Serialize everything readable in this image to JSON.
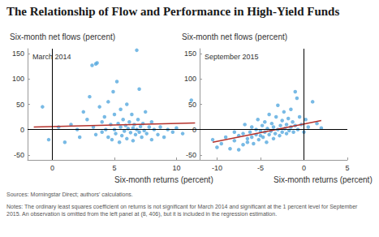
{
  "title": "The Relationship of Flow and Performance in High-Yield Funds",
  "sources": "Sources: Morningstar Direct; authors' calculations.",
  "notes": "Notes: The ordinary least squares coefficient on returns is not significant for March 2014 and significant at the 1 percent level for September 2015. An observation is omitted from the left panel at (8, 406), but it is included in the regression estimation.",
  "chart_data": [
    {
      "type": "scatter",
      "annotation": "March 2014",
      "y_label": "Six-month net flows (percent)",
      "x_label": "Six-month returns (percent)",
      "xlim": [
        -2,
        12
      ],
      "xticks": [
        0,
        5,
        10
      ],
      "ylim": [
        -60,
        160
      ],
      "yticks": [
        -50,
        0,
        50,
        100,
        150
      ],
      "series": [
        {
          "type": "scatter",
          "color": "#56a9de",
          "x": [
            -0.8,
            -0.3,
            0.5,
            1,
            1.5,
            2,
            2.2,
            2.5,
            2.8,
            3,
            3.2,
            3.5,
            3.6,
            3.3,
            3.5,
            3.8,
            4,
            4,
            4.2,
            4.3,
            4.5,
            4.5,
            4.7,
            4.8,
            4.9,
            5,
            5,
            5.1,
            5.2,
            5.3,
            5.4,
            5.5,
            5.5,
            5.6,
            5.7,
            5.8,
            5.9,
            6,
            6,
            6.1,
            6.2,
            6.3,
            6.4,
            6.5,
            6.5,
            6.6,
            6.7,
            6.8,
            6.8,
            6.9,
            7,
            7,
            7.1,
            7.2,
            7.3,
            7.4,
            7.5,
            7.6,
            7.8,
            8,
            8,
            8.2,
            8.5,
            8.7,
            9,
            9.3,
            9.7,
            10,
            10.5,
            11.2
          ],
          "values": [
            45,
            -20,
            5,
            -25,
            10,
            0,
            -15,
            35,
            20,
            65,
            127,
            130,
            132,
            5,
            -10,
            45,
            15,
            -5,
            25,
            0,
            -15,
            55,
            10,
            -20,
            75,
            0,
            30,
            -8,
            95,
            12,
            -25,
            5,
            40,
            -12,
            20,
            -3,
            8,
            -18,
            50,
            2,
            15,
            -6,
            30,
            -22,
            3,
            10,
            -10,
            157,
            0,
            20,
            80,
            -5,
            6,
            -15,
            12,
            -2,
            35,
            -8,
            5,
            -20,
            15,
            0,
            -10,
            5,
            -15,
            0,
            -5,
            3,
            -8,
            58
          ]
        },
        {
          "type": "line",
          "color": "#b5312b",
          "x": [
            -1.5,
            11.5
          ],
          "values": [
            5,
            13
          ]
        }
      ]
    },
    {
      "type": "scatter",
      "annotation": "September 2015",
      "y_label": "Six-month net flows (percent)",
      "x_label": "Six-month returns (percent)",
      "xlim": [
        -12,
        5
      ],
      "xticks": [
        -10,
        -5,
        0,
        5
      ],
      "ylim": [
        -60,
        160
      ],
      "yticks": [
        -50,
        0,
        50,
        100,
        150
      ],
      "series": [
        {
          "type": "scatter",
          "color": "#56a9de",
          "x": [
            -10.5,
            -10,
            -9.5,
            -9,
            -8.5,
            -8,
            -8,
            -7.5,
            -7.5,
            -7,
            -7,
            -6.8,
            -6.5,
            -6.5,
            -6.2,
            -6,
            -6,
            -5.8,
            -5.5,
            -5.5,
            -5.3,
            -5.2,
            -5,
            -5,
            -4.8,
            -4.7,
            -4.5,
            -4.5,
            -4.3,
            -4.2,
            -4,
            -4,
            -3.8,
            -3.7,
            -3.5,
            -3.5,
            -3.3,
            -3.2,
            -3,
            -3,
            -2.8,
            -2.7,
            -2.5,
            -2.5,
            -2.3,
            -2.2,
            -2,
            -2,
            -1.8,
            -1.7,
            -1.5,
            -1.5,
            -1.3,
            -1.2,
            -1,
            -1,
            -0.8,
            -0.7,
            -0.5,
            -0.3,
            0,
            0.2,
            0.5,
            1,
            1.5,
            2
          ],
          "values": [
            -20,
            -35,
            -28,
            -15,
            -38,
            -22,
            -5,
            -40,
            -12,
            -30,
            -8,
            10,
            -18,
            -25,
            -5,
            -15,
            5,
            -28,
            -10,
            0,
            20,
            -20,
            -12,
            -3,
            8,
            -15,
            -5,
            15,
            -25,
            2,
            -10,
            30,
            -3,
            12,
            -18,
            5,
            -8,
            25,
            48,
            0,
            -12,
            8,
            -5,
            18,
            35,
            2,
            -8,
            10,
            22,
            -2,
            5,
            40,
            15,
            -5,
            75,
            8,
            62,
            0,
            25,
            10,
            -5,
            20,
            5,
            55,
            12,
            3
          ]
        },
        {
          "type": "line",
          "color": "#b5312b",
          "x": [
            -10.5,
            2
          ],
          "values": [
            -25,
            18
          ]
        }
      ]
    }
  ]
}
